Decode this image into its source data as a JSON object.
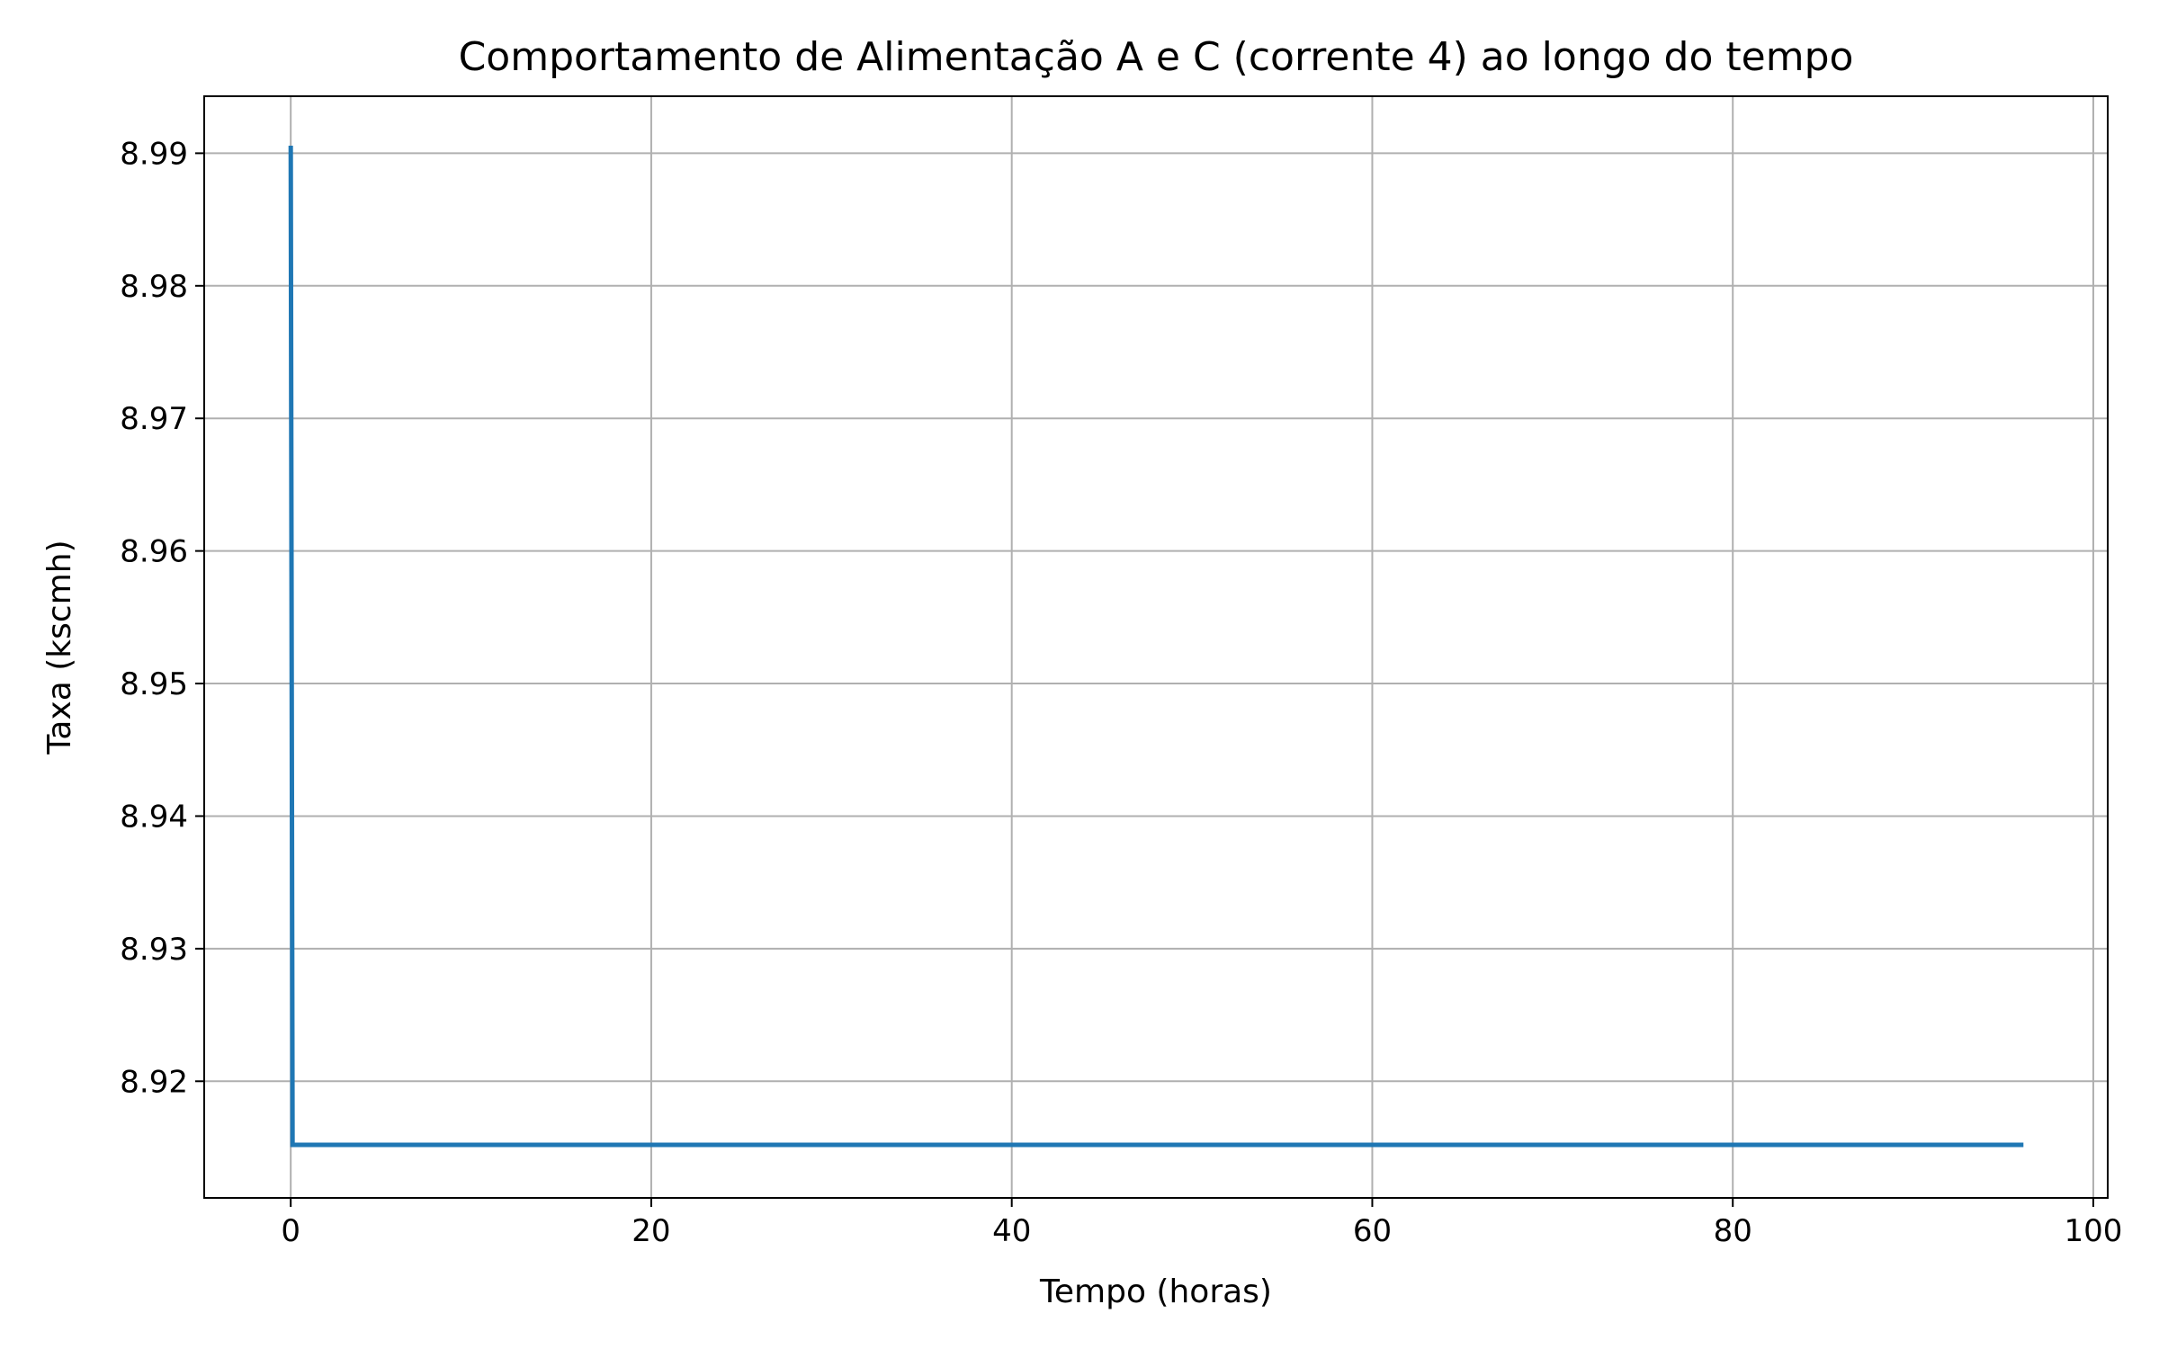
{
  "chart_data": {
    "type": "line",
    "title": "Comportamento de Alimentação A e C (corrente 4) ao longo do tempo",
    "xlabel": "Tempo (horas)",
    "ylabel": "Taxa (kscmh)",
    "xlim": [
      -4.8,
      100.8
    ],
    "ylim": [
      8.9112,
      8.9943
    ],
    "x_ticks": [
      0,
      20,
      40,
      60,
      80,
      100
    ],
    "x_tick_labels": [
      "0",
      "20",
      "40",
      "60",
      "80",
      "100"
    ],
    "y_ticks": [
      8.92,
      8.93,
      8.94,
      8.95,
      8.96,
      8.97,
      8.98,
      8.99
    ],
    "y_tick_labels": [
      "8.92",
      "8.93",
      "8.94",
      "8.95",
      "8.96",
      "8.97",
      "8.98",
      "8.99"
    ],
    "grid": true,
    "legend": "none",
    "colors": {
      "line": "#1f77b4",
      "grid": "#b0b0b0",
      "axes": "#000000"
    },
    "series": [
      {
        "x": [
          0.0,
          0.1,
          96.0
        ],
        "y": [
          8.9904,
          8.9152,
          8.9152
        ]
      }
    ]
  }
}
